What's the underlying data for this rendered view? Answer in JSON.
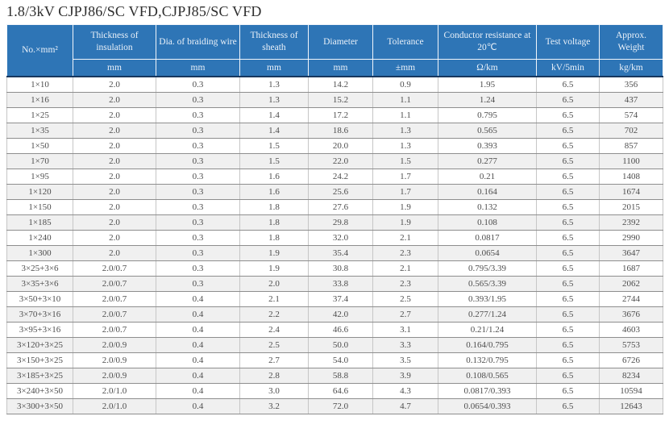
{
  "title": "1.8/3kV CJPJ86/SC VFD,CJPJ85/SC VFD",
  "colors": {
    "header_bg": "#2e75b6",
    "header_text": "#eaf1f9",
    "header_divider": "#17375e",
    "row_stripe": "#f0f0f0",
    "grid_horizontal": "#8e8e8e",
    "grid_vertical": "#c6c6c6",
    "body_text": "#4d4d4d"
  },
  "table": {
    "columns": [
      {
        "label": "No.×mm²",
        "unit": ""
      },
      {
        "label": "Thickness of insulation",
        "unit": "mm"
      },
      {
        "label": "Dia. of braiding wire",
        "unit": "mm"
      },
      {
        "label": "Thickness of sheath",
        "unit": "mm"
      },
      {
        "label": "Diameter",
        "unit": "mm"
      },
      {
        "label": "Tolerance",
        "unit": "±mm"
      },
      {
        "label": "Conductor resistance at 20℃",
        "unit": "Ω/km"
      },
      {
        "label": "Test voltage",
        "unit": "kV/5min"
      },
      {
        "label": "Approx. Weight",
        "unit": "kg/km"
      }
    ],
    "rows": [
      [
        "1×10",
        "2.0",
        "0.3",
        "1.3",
        "14.2",
        "0.9",
        "1.95",
        "6.5",
        "356"
      ],
      [
        "1×16",
        "2.0",
        "0.3",
        "1.3",
        "15.2",
        "1.1",
        "1.24",
        "6.5",
        "437"
      ],
      [
        "1×25",
        "2.0",
        "0.3",
        "1.4",
        "17.2",
        "1.1",
        "0.795",
        "6.5",
        "574"
      ],
      [
        "1×35",
        "2.0",
        "0.3",
        "1.4",
        "18.6",
        "1.3",
        "0.565",
        "6.5",
        "702"
      ],
      [
        "1×50",
        "2.0",
        "0.3",
        "1.5",
        "20.0",
        "1.3",
        "0.393",
        "6.5",
        "857"
      ],
      [
        "1×70",
        "2.0",
        "0.3",
        "1.5",
        "22.0",
        "1.5",
        "0.277",
        "6.5",
        "1100"
      ],
      [
        "1×95",
        "2.0",
        "0.3",
        "1.6",
        "24.2",
        "1.7",
        "0.21",
        "6.5",
        "1408"
      ],
      [
        "1×120",
        "2.0",
        "0.3",
        "1.6",
        "25.6",
        "1.7",
        "0.164",
        "6.5",
        "1674"
      ],
      [
        "1×150",
        "2.0",
        "0.3",
        "1.8",
        "27.6",
        "1.9",
        "0.132",
        "6.5",
        "2015"
      ],
      [
        "1×185",
        "2.0",
        "0.3",
        "1.8",
        "29.8",
        "1.9",
        "0.108",
        "6.5",
        "2392"
      ],
      [
        "1×240",
        "2.0",
        "0.3",
        "1.8",
        "32.0",
        "2.1",
        "0.0817",
        "6.5",
        "2990"
      ],
      [
        "1×300",
        "2.0",
        "0.3",
        "1.9",
        "35.4",
        "2.3",
        "0.0654",
        "6.5",
        "3647"
      ],
      [
        "3×25+3×6",
        "2.0/0.7",
        "0.3",
        "1.9",
        "30.8",
        "2.1",
        "0.795/3.39",
        "6.5",
        "1687"
      ],
      [
        "3×35+3×6",
        "2.0/0.7",
        "0.3",
        "2.0",
        "33.8",
        "2.3",
        "0.565/3.39",
        "6.5",
        "2062"
      ],
      [
        "3×50+3×10",
        "2.0/0.7",
        "0.4",
        "2.1",
        "37.4",
        "2.5",
        "0.393/1.95",
        "6.5",
        "2744"
      ],
      [
        "3×70+3×16",
        "2.0/0.7",
        "0.4",
        "2.2",
        "42.0",
        "2.7",
        "0.277/1.24",
        "6.5",
        "3676"
      ],
      [
        "3×95+3×16",
        "2.0/0.7",
        "0.4",
        "2.4",
        "46.6",
        "3.1",
        "0.21/1.24",
        "6.5",
        "4603"
      ],
      [
        "3×120+3×25",
        "2.0/0.9",
        "0.4",
        "2.5",
        "50.0",
        "3.3",
        "0.164/0.795",
        "6.5",
        "5753"
      ],
      [
        "3×150+3×25",
        "2.0/0.9",
        "0.4",
        "2.7",
        "54.0",
        "3.5",
        "0.132/0.795",
        "6.5",
        "6726"
      ],
      [
        "3×185+3×25",
        "2.0/0.9",
        "0.4",
        "2.8",
        "58.8",
        "3.9",
        "0.108/0.565",
        "6.5",
        "8234"
      ],
      [
        "3×240+3×50",
        "2.0/1.0",
        "0.4",
        "3.0",
        "64.6",
        "4.3",
        "0.0817/0.393",
        "6.5",
        "10594"
      ],
      [
        "3×300+3×50",
        "2.0/1.0",
        "0.4",
        "3.2",
        "72.0",
        "4.7",
        "0.0654/0.393",
        "6.5",
        "12643"
      ]
    ]
  }
}
